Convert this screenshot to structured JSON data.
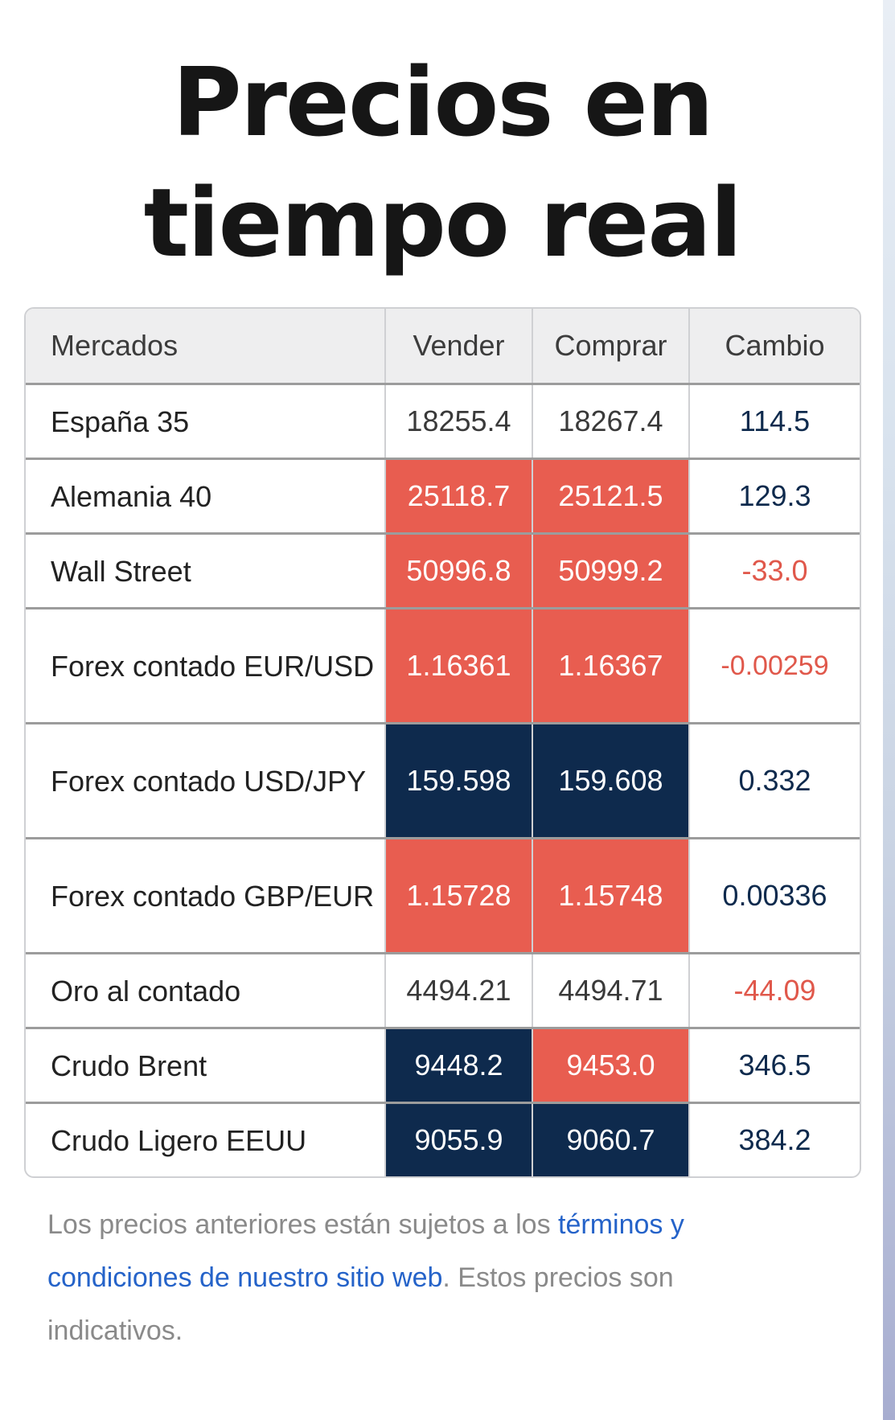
{
  "page": {
    "title": "Precios en tiempo real"
  },
  "table": {
    "headers": [
      "Mercados",
      "Vender",
      "Comprar",
      "Cambio"
    ],
    "rows": [
      {
        "market": "España 35",
        "sell": "18255.4",
        "buy": "18267.4",
        "change": "114.5",
        "sell_state": "neutral",
        "buy_state": "neutral",
        "change_dir": "positive"
      },
      {
        "market": "Alemania 40",
        "sell": "25118.7",
        "buy": "25121.5",
        "change": "129.3",
        "sell_state": "up",
        "buy_state": "up",
        "change_dir": "positive"
      },
      {
        "market": "Wall Street",
        "sell": "50996.8",
        "buy": "50999.2",
        "change": "-33.0",
        "sell_state": "up",
        "buy_state": "up",
        "change_dir": "negative"
      },
      {
        "market": "Forex contado EUR/USD",
        "sell": "1.16361",
        "buy": "1.16367",
        "change": "-0.00259",
        "sell_state": "up",
        "buy_state": "up",
        "change_dir": "negative"
      },
      {
        "market": "Forex contado USD/JPY",
        "sell": "159.598",
        "buy": "159.608",
        "change": "0.332",
        "sell_state": "down",
        "buy_state": "down",
        "change_dir": "positive"
      },
      {
        "market": "Forex contado GBP/EUR",
        "sell": "1.15728",
        "buy": "1.15748",
        "change": "0.00336",
        "sell_state": "up",
        "buy_state": "up",
        "change_dir": "positive"
      },
      {
        "market": "Oro al contado",
        "sell": "4494.21",
        "buy": "4494.71",
        "change": "-44.09",
        "sell_state": "neutral",
        "buy_state": "neutral",
        "change_dir": "negative"
      },
      {
        "market": "Crudo Brent",
        "sell": "9448.2",
        "buy": "9453.0",
        "change": "346.5",
        "sell_state": "down",
        "buy_state": "up",
        "change_dir": "positive"
      },
      {
        "market": "Crudo Ligero EEUU",
        "sell": "9055.9",
        "buy": "9060.7",
        "change": "384.2",
        "sell_state": "down",
        "buy_state": "down",
        "change_dir": "positive"
      }
    ]
  },
  "disclaimer": {
    "before_link": "Los precios anteriores están sujetos a los ",
    "link_text": "términos y condiciones de nuestro sitio web",
    "after_link": ". Estos precios son indicativos."
  },
  "colors": {
    "price_up_bg": "#e85d50",
    "price_down_bg": "#0e2a4d",
    "change_positive": "#0e2a4d",
    "change_negative": "#e0584b",
    "link": "#2563c9"
  }
}
